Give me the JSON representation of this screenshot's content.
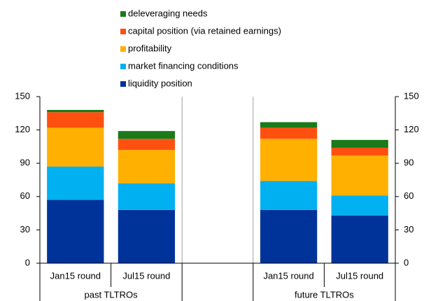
{
  "chart_data": {
    "type": "stacked_bar",
    "categories": [
      "Jan15 round",
      "Jul15 round",
      null,
      "Jan15 round",
      "Jul15 round"
    ],
    "groups": [
      {
        "name": "past TLTROs",
        "categories": [
          0,
          1
        ]
      },
      {
        "name": "future TLTROs",
        "categories": [
          3,
          4
        ]
      }
    ],
    "series": [
      {
        "name": "liquidity position",
        "color": "#003399",
        "values": [
          57,
          48,
          null,
          48,
          43
        ]
      },
      {
        "name": "market financing conditions",
        "color": "#00b0f0",
        "values": [
          30,
          24,
          null,
          26,
          18
        ]
      },
      {
        "name": "profitability",
        "color": "#ffb000",
        "values": [
          35,
          30,
          null,
          38,
          36
        ]
      },
      {
        "name": "capital position (via retained earnings)",
        "color": "#ff5010",
        "values": [
          14,
          10,
          null,
          10,
          7
        ]
      },
      {
        "name": "deleveraging needs",
        "color": "#1a7a1a",
        "values": [
          2,
          7,
          null,
          5,
          7
        ]
      }
    ],
    "ylim": [
      0,
      150
    ],
    "yticks": [
      0,
      30,
      60,
      90,
      120,
      150
    ],
    "y2lim": [
      0,
      150
    ],
    "y2ticks": [
      0,
      30,
      60,
      90,
      120,
      150
    ],
    "grid": false,
    "legend": "top"
  }
}
